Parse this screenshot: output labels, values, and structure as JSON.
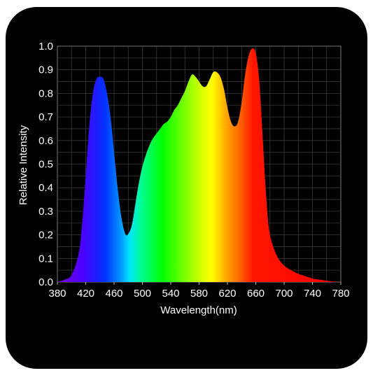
{
  "chart_data": {
    "type": "area",
    "title": "",
    "xlabel": "Wavelength(nm)",
    "ylabel": "Relative Intensity",
    "xlim": [
      380,
      780
    ],
    "ylim": [
      0,
      1.0
    ],
    "x_ticks": [
      "380",
      "420",
      "460",
      "500",
      "540",
      "580",
      "620",
      "660",
      "700",
      "740",
      "780"
    ],
    "y_ticks": [
      "0.0",
      "0.1",
      "0.2",
      "0.3",
      "0.4",
      "0.5",
      "0.6",
      "0.7",
      "0.8",
      "0.9",
      "1.0"
    ],
    "grid": true,
    "legend": "none",
    "fill": "visible spectrum gradient",
    "colors": {
      "background": "#000000",
      "text": "#ffffff",
      "grid": "#3a3a3a"
    },
    "series": [
      {
        "x": [
          380,
          390,
          400,
          410,
          415,
          420,
          425,
          430,
          435,
          440,
          445,
          450,
          455,
          460,
          465,
          470,
          475,
          479,
          485,
          490,
          495,
          500,
          505,
          510,
          515,
          520,
          525,
          530,
          535,
          540,
          545,
          550,
          555,
          560,
          565,
          570,
          575,
          580,
          585,
          590,
          595,
          600,
          605,
          610,
          615,
          620,
          625,
          630,
          635,
          640,
          645,
          650,
          655,
          660,
          665,
          670,
          675,
          680,
          690,
          700,
          710,
          720,
          730,
          740,
          750,
          760,
          770,
          780
        ],
        "values": [
          0.0,
          0.01,
          0.03,
          0.12,
          0.25,
          0.45,
          0.66,
          0.8,
          0.86,
          0.87,
          0.86,
          0.8,
          0.7,
          0.55,
          0.4,
          0.28,
          0.21,
          0.2,
          0.24,
          0.33,
          0.42,
          0.49,
          0.54,
          0.58,
          0.61,
          0.63,
          0.65,
          0.67,
          0.68,
          0.7,
          0.73,
          0.75,
          0.78,
          0.81,
          0.85,
          0.88,
          0.87,
          0.85,
          0.83,
          0.83,
          0.86,
          0.89,
          0.89,
          0.87,
          0.82,
          0.74,
          0.68,
          0.66,
          0.68,
          0.76,
          0.88,
          0.96,
          0.99,
          0.97,
          0.85,
          0.6,
          0.35,
          0.2,
          0.11,
          0.07,
          0.05,
          0.035,
          0.025,
          0.015,
          0.01,
          0.005,
          0.002,
          0.0
        ]
      }
    ]
  }
}
